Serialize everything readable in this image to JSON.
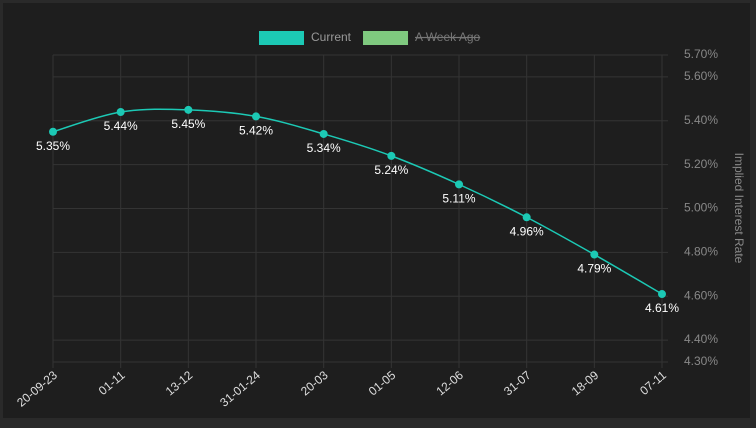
{
  "chart_data": {
    "type": "line",
    "categories": [
      "20-09-23",
      "01-11",
      "13-12",
      "31-01-24",
      "20-03",
      "01-05",
      "12-06",
      "31-07",
      "18-09",
      "07-11"
    ],
    "series": [
      {
        "name": "Current",
        "color": "#1cc9b5",
        "values": [
          5.35,
          5.44,
          5.45,
          5.42,
          5.34,
          5.24,
          5.11,
          4.96,
          4.79,
          4.61
        ],
        "value_labels": [
          "5.35%",
          "5.44%",
          "5.45%",
          "5.42%",
          "5.34%",
          "5.24%",
          "5.11%",
          "4.96%",
          "4.79%",
          "4.61%"
        ]
      },
      {
        "name": "A Week Ago",
        "color": "#7fc97f",
        "hidden": true,
        "values": [
          null,
          null,
          null,
          null,
          null,
          null,
          null,
          null,
          null,
          null
        ]
      }
    ],
    "ylabel": "Implied Interest Rate",
    "yaxis_side": "right",
    "ylim": [
      4.3,
      5.7
    ],
    "yticks": [
      {
        "value": 4.3,
        "label": "4.30%"
      },
      {
        "value": 4.4,
        "label": "4.40%"
      },
      {
        "value": 4.6,
        "label": "4.60%"
      },
      {
        "value": 4.8,
        "label": "4.80%"
      },
      {
        "value": 5.0,
        "label": "5.00%"
      },
      {
        "value": 5.2,
        "label": "5.20%"
      },
      {
        "value": 5.4,
        "label": "5.40%"
      },
      {
        "value": 5.6,
        "label": "5.60%"
      },
      {
        "value": 5.7,
        "label": "5.70%"
      }
    ],
    "grid": true,
    "legend": "top"
  }
}
